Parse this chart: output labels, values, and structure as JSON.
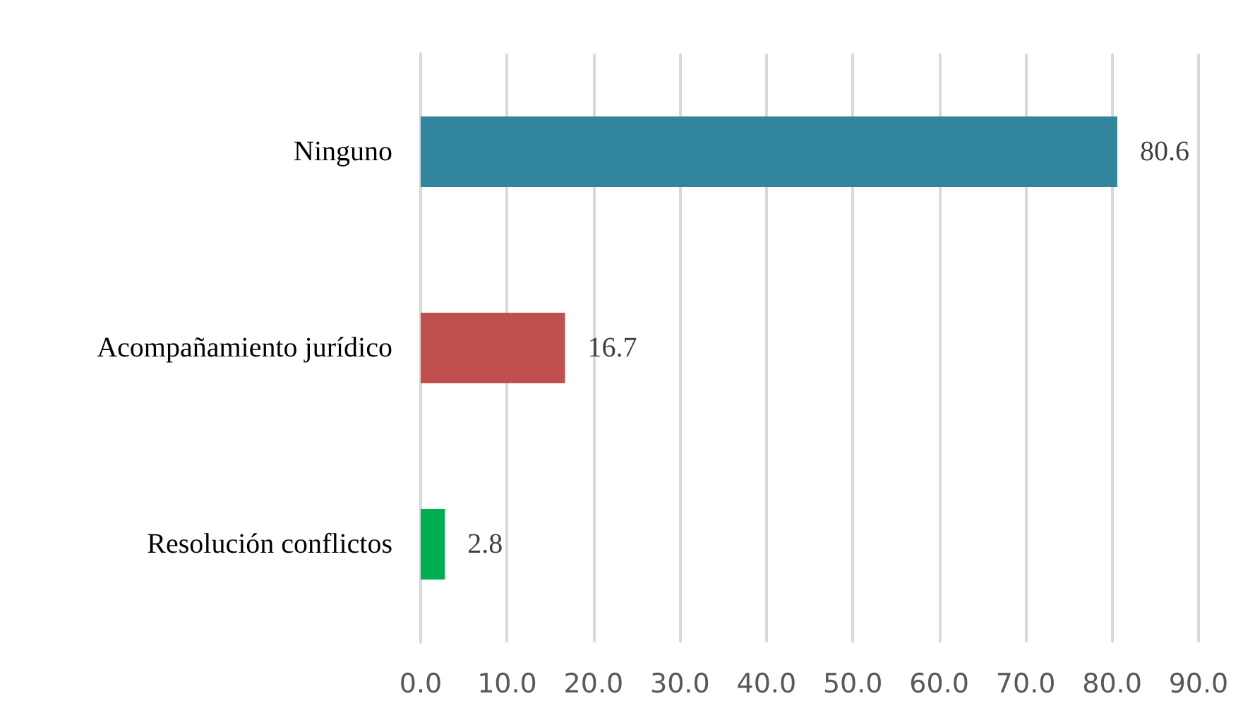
{
  "chart_data": {
    "type": "bar",
    "orientation": "horizontal",
    "categories": [
      "Ninguno",
      "Acompañamiento jurídico",
      "Resolución conflictos"
    ],
    "values": [
      80.6,
      16.7,
      2.8
    ],
    "colors": [
      "#31859c",
      "#c0504d",
      "#00b050"
    ],
    "xlim": [
      0,
      90
    ],
    "xticks": [
      {
        "value": 0,
        "label": "0.0"
      },
      {
        "value": 10,
        "label": "10.0"
      },
      {
        "value": 20,
        "label": "20.0"
      },
      {
        "value": 30,
        "label": "30.0"
      },
      {
        "value": 40,
        "label": "40.0"
      },
      {
        "value": 50,
        "label": "50.0"
      },
      {
        "value": 60,
        "label": "60.0"
      },
      {
        "value": 70,
        "label": "70.0"
      },
      {
        "value": 80,
        "label": "80.0"
      },
      {
        "value": 90,
        "label": "90.0"
      }
    ],
    "grid": "x",
    "data_labels": true
  }
}
